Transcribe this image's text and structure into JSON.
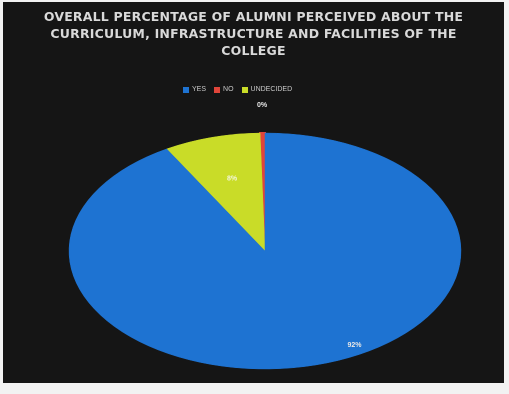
{
  "chart_data": {
    "type": "pie",
    "title": "OVERALL PERCENTAGE OF ALUMNI PERCEIVED ABOUT THE CURRICULUM, INFRASTRUCTURE AND FACILITIES OF THE COLLEGE",
    "legend_position": "top",
    "slices": [
      {
        "label": "YES",
        "value": 92,
        "display": "92%",
        "color": "#1e73d2"
      },
      {
        "label": "NO",
        "value": 0.4,
        "display": "0%",
        "color": "#e0453a"
      },
      {
        "label": "UNDECIDED",
        "value": 8,
        "display": "8%",
        "color": "#c9dc28"
      }
    ]
  },
  "colors": {
    "background": "#151515",
    "title": "#d9d9d9",
    "label": "#e6e6e6"
  }
}
